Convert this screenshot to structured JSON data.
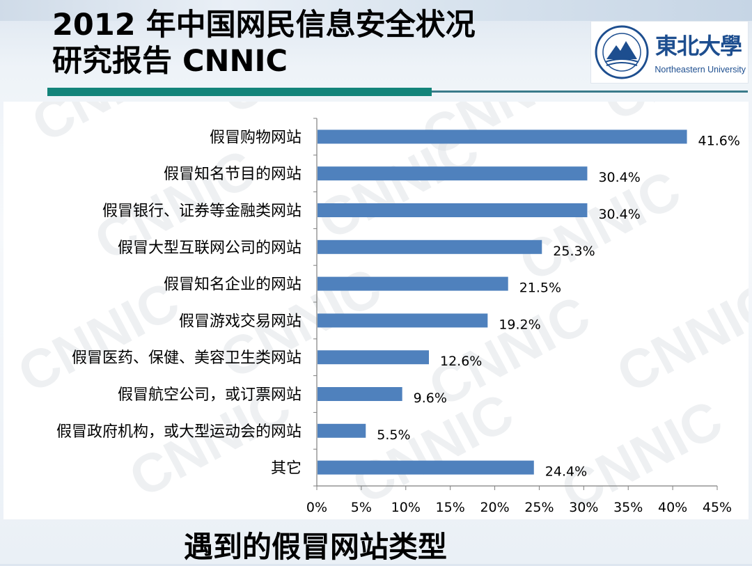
{
  "slide": {
    "title_line1": "2012 年中国网民信息安全状况",
    "title_line2": "研究报告  CNNIC",
    "logo_cn": "東北大學",
    "logo_en": "Northeastern University",
    "caption": "遇到的假冒网站类型",
    "watermark": "CNNIC"
  },
  "colors": {
    "bar": "#4f81bd",
    "accent_teal": "#13847a"
  },
  "chart_data": {
    "type": "bar",
    "orientation": "horizontal",
    "categories": [
      "假冒购物网站",
      "假冒知名节目的网站",
      "假冒银行、证券等金融类网站",
      "假冒大型互联网公司的网站",
      "假冒知名企业的网站",
      "假冒游戏交易网站",
      "假冒医药、保健、美容卫生类网站",
      "假冒航空公司，或订票网站",
      "假冒政府机构，或大型运动会的网站",
      "其它"
    ],
    "values": [
      41.6,
      30.4,
      30.4,
      25.3,
      21.5,
      19.2,
      12.6,
      9.6,
      5.5,
      24.4
    ],
    "data_labels": [
      "41.6%",
      "30.4%",
      "30.4%",
      "25.3%",
      "21.5%",
      "19.2%",
      "12.6%",
      "9.6%",
      "5.5%",
      "24.4%"
    ],
    "xlim": [
      0,
      45
    ],
    "xticks": [
      "0%",
      "5%",
      "10%",
      "15%",
      "20%",
      "25%",
      "30%",
      "35%",
      "40%",
      "45%"
    ],
    "grid": false,
    "title": "",
    "xlabel": "",
    "ylabel": ""
  }
}
